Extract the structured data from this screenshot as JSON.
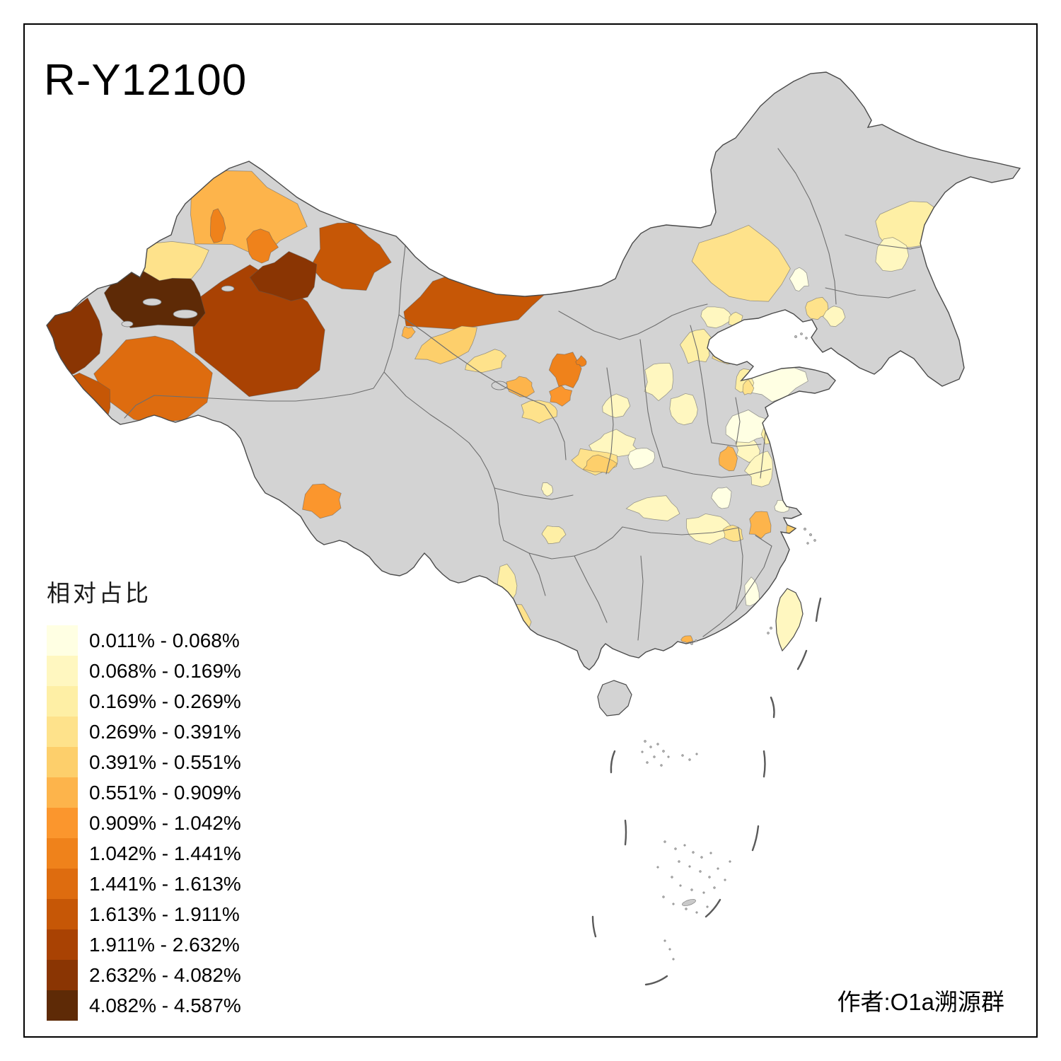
{
  "title": "R-Y12100",
  "attribution": "作者:O1a溯源群",
  "legend": {
    "title": "相对占比",
    "bins": [
      {
        "label": "0.011% - 0.068%",
        "min": 0.011,
        "max": 0.068,
        "color": "#FFFFE3"
      },
      {
        "label": "0.068% - 0.169%",
        "min": 0.068,
        "max": 0.169,
        "color": "#FFF7C0"
      },
      {
        "label": "0.169% - 0.269%",
        "min": 0.169,
        "max": 0.269,
        "color": "#FEEFA5"
      },
      {
        "label": "0.269% - 0.391%",
        "min": 0.269,
        "max": 0.391,
        "color": "#FEE28B"
      },
      {
        "label": "0.391% - 0.551%",
        "min": 0.391,
        "max": 0.551,
        "color": "#FDCF6B"
      },
      {
        "label": "0.551% - 0.909%",
        "min": 0.551,
        "max": 0.909,
        "color": "#FDB44B"
      },
      {
        "label": "0.909% - 1.042%",
        "min": 0.909,
        "max": 1.042,
        "color": "#FB962D"
      },
      {
        "label": "1.042% - 1.441%",
        "min": 1.042,
        "max": 1.441,
        "color": "#EF821B"
      },
      {
        "label": "1.441% - 1.613%",
        "min": 1.441,
        "max": 1.613,
        "color": "#DE6C0F"
      },
      {
        "label": "1.613% - 1.911%",
        "min": 1.613,
        "max": 1.911,
        "color": "#C65706"
      },
      {
        "label": "1.911% - 2.632%",
        "min": 1.911,
        "max": 2.632,
        "color": "#A94203"
      },
      {
        "label": "2.632% - 4.082%",
        "min": 2.632,
        "max": 4.082,
        "color": "#8A3503"
      },
      {
        "label": "4.082% - 4.587%",
        "min": 4.082,
        "max": 4.587,
        "color": "#5E2A06"
      }
    ]
  },
  "map": {
    "land_color": "#D3D3D3",
    "sea_color": "#FFFFFF",
    "province_border_color": "#6E6E6E",
    "national_border_color": "#4A4A4A",
    "taiwan_bin": 2,
    "regions": [
      {
        "id": "r01",
        "bin": 11
      },
      {
        "id": "r02",
        "bin": 10
      },
      {
        "id": "r03",
        "bin": 10
      },
      {
        "id": "r04",
        "bin": 9
      },
      {
        "id": "r05",
        "bin": 10
      },
      {
        "id": "r06",
        "bin": 12
      },
      {
        "id": "r07",
        "bin": 13
      },
      {
        "id": "r08",
        "bin": 12
      },
      {
        "id": "r09",
        "bin": 4
      },
      {
        "id": "r10",
        "bin": 6
      },
      {
        "id": "r11",
        "bin": 8
      },
      {
        "id": "r12",
        "bin": 8
      },
      {
        "id": "r13",
        "bin": 6
      },
      {
        "id": "r14",
        "bin": 5
      },
      {
        "id": "r15",
        "bin": 4
      },
      {
        "id": "r16",
        "bin": 6
      },
      {
        "id": "r17",
        "bin": 7
      },
      {
        "id": "r18",
        "bin": 4
      },
      {
        "id": "r19",
        "bin": 8
      },
      {
        "id": "r20",
        "bin": 8
      },
      {
        "id": "r21",
        "bin": 7
      },
      {
        "id": "r22",
        "bin": 4
      },
      {
        "id": "r23",
        "bin": 3
      },
      {
        "id": "r24",
        "bin": 2
      },
      {
        "id": "r25",
        "bin": 1
      },
      {
        "id": "r26",
        "bin": 4
      },
      {
        "id": "r27",
        "bin": 2
      },
      {
        "id": "r28",
        "bin": 2
      },
      {
        "id": "r29",
        "bin": 3
      },
      {
        "id": "r30",
        "bin": 3
      },
      {
        "id": "r31",
        "bin": 4
      },
      {
        "id": "r32",
        "bin": 2
      },
      {
        "id": "r33",
        "bin": 2
      },
      {
        "id": "r34",
        "bin": 2
      },
      {
        "id": "r35",
        "bin": 2
      },
      {
        "id": "r36",
        "bin": 1
      },
      {
        "id": "r37",
        "bin": 4
      },
      {
        "id": "r38",
        "bin": 1
      },
      {
        "id": "r39",
        "bin": 3
      },
      {
        "id": "r40",
        "bin": 4
      },
      {
        "id": "r41",
        "bin": 2
      },
      {
        "id": "r42",
        "bin": 6
      },
      {
        "id": "r43",
        "bin": 1
      },
      {
        "id": "r44",
        "bin": 2
      },
      {
        "id": "r45",
        "bin": 2
      },
      {
        "id": "r46",
        "bin": 1
      },
      {
        "id": "r47",
        "bin": 5
      },
      {
        "id": "r48",
        "bin": 2
      },
      {
        "id": "r49",
        "bin": 3
      },
      {
        "id": "r50",
        "bin": 2
      },
      {
        "id": "r51",
        "bin": 4
      },
      {
        "id": "r52",
        "bin": 6
      },
      {
        "id": "r53",
        "bin": 5
      },
      {
        "id": "r54",
        "bin": 1
      },
      {
        "id": "r55",
        "bin": 1
      },
      {
        "id": "r56",
        "bin": 6
      },
      {
        "id": "r57",
        "bin": 3
      },
      {
        "id": "r58",
        "bin": 4
      },
      {
        "id": "r59",
        "bin": 5
      },
      {
        "id": "r60",
        "bin": 3
      }
    ]
  }
}
